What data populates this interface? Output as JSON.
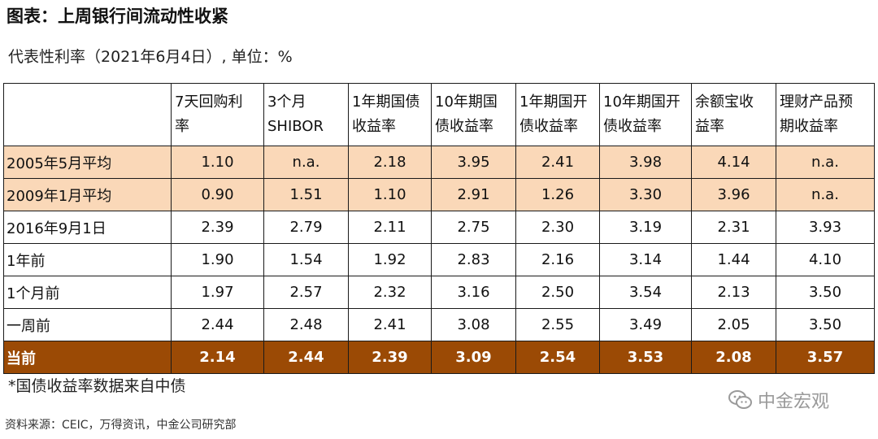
{
  "header": {
    "title": "图表：上周银行间流动性收紧",
    "subtitle": "代表性利率（2021年6月4日）, 单位：%"
  },
  "chart_data": {
    "type": "table",
    "columns": [
      "",
      "7天回购利率",
      "3个月SHIBOR",
      "1年期国债收益率",
      "10年期国债收益率",
      "1年期国开债收益率",
      "10年期国开债收益率",
      "余额宝收益率",
      "理财产品预期收益率"
    ],
    "rows": [
      {
        "label": "2005年5月平均",
        "values": [
          "1.10",
          "n.a.",
          "2.18",
          "3.95",
          "2.41",
          "3.98",
          "4.14",
          "n.a."
        ],
        "highlight": "peach"
      },
      {
        "label": "2009年1月平均",
        "values": [
          "0.90",
          "1.51",
          "1.10",
          "2.91",
          "1.26",
          "3.30",
          "3.96",
          "n.a."
        ],
        "highlight": "peach"
      },
      {
        "label": "2016年9月1日",
        "values": [
          "2.39",
          "2.79",
          "2.11",
          "2.75",
          "2.30",
          "3.19",
          "2.31",
          "3.93"
        ],
        "highlight": ""
      },
      {
        "label": "1年前",
        "values": [
          "1.90",
          "1.54",
          "1.92",
          "2.83",
          "2.16",
          "3.14",
          "1.44",
          "4.10"
        ],
        "highlight": ""
      },
      {
        "label": "1个月前",
        "values": [
          "1.97",
          "2.57",
          "2.32",
          "3.16",
          "2.50",
          "3.54",
          "2.13",
          "3.50"
        ],
        "highlight": ""
      },
      {
        "label": "一周前",
        "values": [
          "2.44",
          "2.48",
          "2.41",
          "3.08",
          "2.55",
          "3.49",
          "2.05",
          "3.50"
        ],
        "highlight": ""
      },
      {
        "label": "当前",
        "values": [
          "2.14",
          "2.44",
          "2.39",
          "3.09",
          "2.54",
          "3.53",
          "2.08",
          "3.57"
        ],
        "highlight": "brown"
      }
    ]
  },
  "footer": {
    "note": "*国债收益率数据来自中债",
    "source": "资料来源：CEIC，万得资讯，中金公司研究部",
    "watermark": "中金宏观"
  },
  "colors": {
    "highlight_peach": "#fad8b8",
    "highlight_brown": "#9b4a05"
  }
}
